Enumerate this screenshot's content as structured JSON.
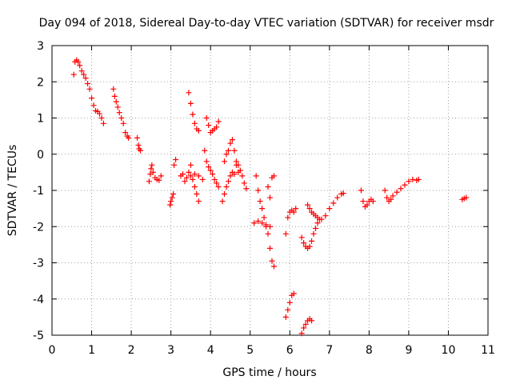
{
  "chart_data": {
    "type": "scatter",
    "title": "Day 094 of 2018, Sidereal Day-to-day VTEC variation (SDTVAR) for receiver msdr",
    "xlabel": "GPS time / hours",
    "ylabel": "SDTVAR / TECUs",
    "xlim": [
      0,
      11
    ],
    "ylim": [
      -5,
      3
    ],
    "xticks": [
      "0",
      "1",
      "2",
      "3",
      "4",
      "5",
      "6",
      "7",
      "8",
      "9",
      "10",
      "11"
    ],
    "yticks": [
      "3",
      "2",
      "1",
      "0",
      "-1",
      "-2",
      "-3",
      "-4",
      "-5"
    ],
    "grid": true,
    "marker": "+",
    "marker_color": "#ff0000",
    "series": [
      {
        "name": "SDTVAR",
        "segments": [
          [
            [
              0.55,
              2.2
            ],
            [
              0.58,
              2.55
            ],
            [
              0.62,
              2.6
            ],
            [
              0.66,
              2.55
            ],
            [
              0.7,
              2.45
            ],
            [
              0.75,
              2.3
            ],
            [
              0.8,
              2.2
            ],
            [
              0.85,
              2.1
            ],
            [
              0.9,
              1.95
            ],
            [
              0.95,
              1.8
            ],
            [
              1.0,
              1.55
            ],
            [
              1.05,
              1.35
            ],
            [
              1.1,
              1.2
            ],
            [
              1.15,
              1.18
            ],
            [
              1.2,
              1.12
            ],
            [
              1.25,
              1.0
            ],
            [
              1.3,
              0.85
            ]
          ],
          [
            [
              1.55,
              1.8
            ],
            [
              1.58,
              1.6
            ],
            [
              1.62,
              1.45
            ],
            [
              1.66,
              1.3
            ],
            [
              1.7,
              1.15
            ],
            [
              1.75,
              1.0
            ],
            [
              1.8,
              0.85
            ],
            [
              1.85,
              0.6
            ],
            [
              1.9,
              0.5
            ],
            [
              1.93,
              0.45
            ]
          ],
          [
            [
              2.15,
              0.45
            ],
            [
              2.18,
              0.25
            ],
            [
              2.2,
              0.15
            ],
            [
              2.23,
              0.1
            ]
          ],
          [
            [
              2.45,
              -0.75
            ],
            [
              2.48,
              -0.55
            ],
            [
              2.5,
              -0.4
            ],
            [
              2.52,
              -0.3
            ],
            [
              2.55,
              -0.5
            ],
            [
              2.6,
              -0.65
            ],
            [
              2.65,
              -0.7
            ],
            [
              2.7,
              -0.72
            ],
            [
              2.75,
              -0.6
            ]
          ],
          [
            [
              2.98,
              -1.4
            ],
            [
              3.0,
              -1.3
            ],
            [
              3.03,
              -1.2
            ],
            [
              3.06,
              -1.1
            ],
            [
              3.08,
              -0.3
            ],
            [
              3.12,
              -0.15
            ]
          ],
          [
            [
              3.25,
              -0.6
            ],
            [
              3.3,
              -0.55
            ],
            [
              3.35,
              -0.75
            ],
            [
              3.4,
              -0.65
            ],
            [
              3.45,
              -0.5
            ],
            [
              3.5,
              -0.3
            ],
            [
              3.55,
              -0.7
            ],
            [
              3.6,
              -0.9
            ],
            [
              3.65,
              -1.1
            ],
            [
              3.7,
              -1.3
            ]
          ],
          [
            [
              3.45,
              1.7
            ],
            [
              3.5,
              1.4
            ],
            [
              3.55,
              1.1
            ],
            [
              3.6,
              0.85
            ],
            [
              3.65,
              0.7
            ],
            [
              3.7,
              0.65
            ]
          ],
          [
            [
              3.5,
              -0.6
            ],
            [
              3.6,
              -0.55
            ],
            [
              3.7,
              -0.6
            ],
            [
              3.8,
              -0.7
            ]
          ],
          [
            [
              3.9,
              1.0
            ],
            [
              3.95,
              0.8
            ],
            [
              4.0,
              0.6
            ],
            [
              4.05,
              0.65
            ],
            [
              4.1,
              0.7
            ],
            [
              4.15,
              0.75
            ],
            [
              4.2,
              0.9
            ]
          ],
          [
            [
              3.85,
              0.1
            ],
            [
              3.9,
              -0.2
            ],
            [
              3.95,
              -0.35
            ],
            [
              4.0,
              -0.45
            ],
            [
              4.05,
              -0.55
            ],
            [
              4.1,
              -0.7
            ],
            [
              4.15,
              -0.8
            ],
            [
              4.2,
              -0.9
            ]
          ],
          [
            [
              4.35,
              -0.2
            ],
            [
              4.4,
              0.0
            ],
            [
              4.45,
              0.1
            ],
            [
              4.5,
              0.3
            ],
            [
              4.55,
              0.4
            ],
            [
              4.6,
              0.1
            ],
            [
              4.65,
              -0.3
            ],
            [
              4.7,
              -0.5
            ]
          ],
          [
            [
              4.3,
              -1.3
            ],
            [
              4.35,
              -1.1
            ],
            [
              4.4,
              -0.9
            ],
            [
              4.45,
              -0.75
            ],
            [
              4.5,
              -0.6
            ],
            [
              4.55,
              -0.5
            ],
            [
              4.6,
              -0.55
            ]
          ],
          [
            [
              4.65,
              -0.2
            ],
            [
              4.7,
              -0.3
            ],
            [
              4.75,
              -0.45
            ],
            [
              4.8,
              -0.6
            ],
            [
              4.85,
              -0.8
            ],
            [
              4.9,
              -0.95
            ]
          ],
          [
            [
              5.15,
              -0.6
            ],
            [
              5.2,
              -1.0
            ],
            [
              5.25,
              -1.3
            ],
            [
              5.3,
              -1.5
            ],
            [
              5.35,
              -1.75
            ],
            [
              5.4,
              -2.0
            ],
            [
              5.45,
              -2.2
            ],
            [
              5.5,
              -2.6
            ],
            [
              5.55,
              -2.95
            ],
            [
              5.6,
              -3.1
            ]
          ],
          [
            [
              5.1,
              -1.9
            ],
            [
              5.2,
              -1.85
            ],
            [
              5.3,
              -1.9
            ],
            [
              5.4,
              -1.95
            ],
            [
              5.5,
              -2.0
            ]
          ],
          [
            [
              5.45,
              -0.9
            ],
            [
              5.5,
              -1.2
            ],
            [
              5.55,
              -0.65
            ],
            [
              5.6,
              -0.6
            ]
          ],
          [
            [
              5.9,
              -2.2
            ],
            [
              5.95,
              -1.75
            ],
            [
              6.0,
              -1.6
            ],
            [
              6.05,
              -1.55
            ],
            [
              6.1,
              -1.6
            ],
            [
              6.15,
              -1.5
            ]
          ],
          [
            [
              5.9,
              -4.5
            ],
            [
              5.95,
              -4.3
            ],
            [
              6.0,
              -4.1
            ],
            [
              6.05,
              -3.9
            ],
            [
              6.1,
              -3.85
            ]
          ],
          [
            [
              6.3,
              -4.95
            ],
            [
              6.35,
              -4.8
            ],
            [
              6.4,
              -4.7
            ],
            [
              6.45,
              -4.6
            ],
            [
              6.5,
              -4.55
            ],
            [
              6.55,
              -4.6
            ]
          ],
          [
            [
              6.3,
              -2.3
            ],
            [
              6.35,
              -2.45
            ],
            [
              6.4,
              -2.55
            ],
            [
              6.45,
              -2.6
            ],
            [
              6.5,
              -2.55
            ],
            [
              6.55,
              -2.4
            ],
            [
              6.6,
              -2.2
            ],
            [
              6.65,
              -2.05
            ],
            [
              6.7,
              -1.9
            ],
            [
              6.75,
              -1.8
            ]
          ],
          [
            [
              6.45,
              -1.4
            ],
            [
              6.5,
              -1.5
            ],
            [
              6.55,
              -1.6
            ],
            [
              6.6,
              -1.65
            ],
            [
              6.65,
              -1.7
            ],
            [
              6.7,
              -1.75
            ],
            [
              6.8,
              -1.8
            ],
            [
              6.9,
              -1.7
            ],
            [
              7.0,
              -1.5
            ],
            [
              7.1,
              -1.35
            ],
            [
              7.2,
              -1.2
            ],
            [
              7.3,
              -1.1
            ],
            [
              7.35,
              -1.08
            ]
          ],
          [
            [
              7.8,
              -1.0
            ],
            [
              7.85,
              -1.3
            ],
            [
              7.9,
              -1.45
            ],
            [
              7.95,
              -1.4
            ],
            [
              8.0,
              -1.3
            ],
            [
              8.05,
              -1.25
            ],
            [
              8.1,
              -1.3
            ]
          ],
          [
            [
              8.4,
              -1.0
            ],
            [
              8.45,
              -1.2
            ],
            [
              8.5,
              -1.3
            ],
            [
              8.55,
              -1.25
            ],
            [
              8.6,
              -1.15
            ],
            [
              8.7,
              -1.05
            ],
            [
              8.8,
              -0.95
            ],
            [
              8.9,
              -0.85
            ],
            [
              9.0,
              -0.75
            ],
            [
              9.1,
              -0.7
            ],
            [
              9.2,
              -0.72
            ],
            [
              9.25,
              -0.7
            ]
          ],
          [
            [
              10.35,
              -1.25
            ],
            [
              10.4,
              -1.22
            ],
            [
              10.45,
              -1.2
            ]
          ]
        ]
      }
    ]
  }
}
